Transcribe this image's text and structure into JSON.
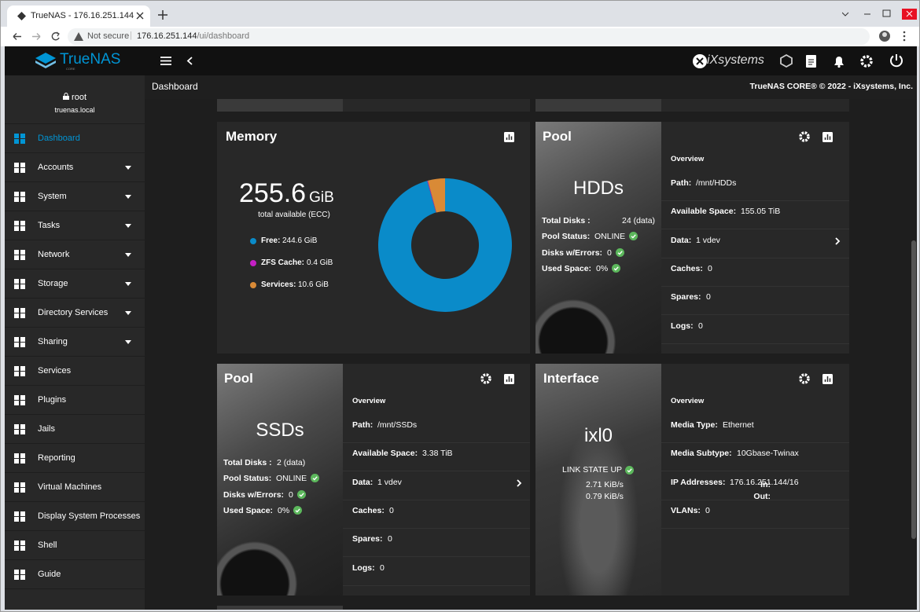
{
  "browser": {
    "tab_title": "TrueNAS - 176.16.251.144",
    "security": "Not secure",
    "url_host": "176.16.251.144",
    "url_path": "/ui/dashboard"
  },
  "topbar": {
    "brand": "TrueNAS",
    "brand_sub": "CORE",
    "vendor": "iXsystems"
  },
  "header": {
    "title": "Dashboard",
    "copyright": "TrueNAS CORE® © 2022 - iXsystems, Inc."
  },
  "user": {
    "name": "root",
    "host": "truenas.local"
  },
  "nav": [
    {
      "label": "Dashboard",
      "active": true,
      "expandable": false
    },
    {
      "label": "Accounts",
      "active": false,
      "expandable": true
    },
    {
      "label": "System",
      "active": false,
      "expandable": true
    },
    {
      "label": "Tasks",
      "active": false,
      "expandable": true
    },
    {
      "label": "Network",
      "active": false,
      "expandable": true
    },
    {
      "label": "Storage",
      "active": false,
      "expandable": true
    },
    {
      "label": "Directory Services",
      "active": false,
      "expandable": true
    },
    {
      "label": "Sharing",
      "active": false,
      "expandable": true
    },
    {
      "label": "Services",
      "active": false,
      "expandable": false
    },
    {
      "label": "Plugins",
      "active": false,
      "expandable": false
    },
    {
      "label": "Jails",
      "active": false,
      "expandable": false
    },
    {
      "label": "Reporting",
      "active": false,
      "expandable": false
    },
    {
      "label": "Virtual Machines",
      "active": false,
      "expandable": false
    },
    {
      "label": "Display System Processes",
      "active": false,
      "expandable": false
    },
    {
      "label": "Shell",
      "active": false,
      "expandable": false
    },
    {
      "label": "Guide",
      "active": false,
      "expandable": false
    }
  ],
  "memory": {
    "title": "Memory",
    "total": "255.6",
    "unit": "GiB",
    "caption": "total available (ECC)",
    "segments": [
      {
        "name": "Free:",
        "value": 244.6,
        "value_label": "244.6 GiB",
        "color": "#0a8bc9"
      },
      {
        "name": "ZFS Cache:",
        "value": 0.4,
        "value_label": "0.4 GiB",
        "color": "#c41fc4"
      },
      {
        "name": "Services:",
        "value": 10.6,
        "value_label": "10.6 GiB",
        "color": "#d98a36"
      }
    ]
  },
  "pools": [
    {
      "title": "Pool",
      "name": "HDDs",
      "stats": [
        {
          "label": "Total Disks :",
          "value": "24 (data)",
          "ok": false
        },
        {
          "label": "Pool Status:",
          "value": "ONLINE",
          "ok": true
        },
        {
          "label": "Disks w/Errors:",
          "value": "0",
          "ok": true
        },
        {
          "label": "Used Space:",
          "value": "0%",
          "ok": true
        }
      ],
      "overview": "Overview",
      "rows": [
        {
          "label": "Path:",
          "value": "/mnt/HDDs",
          "more": false
        },
        {
          "label": "Available Space:",
          "value": "155.05 TiB",
          "more": false
        },
        {
          "label": "Data:",
          "value": "1 vdev",
          "more": true
        },
        {
          "label": "Caches:",
          "value": "0",
          "more": false
        },
        {
          "label": "Spares:",
          "value": "0",
          "more": false
        },
        {
          "label": "Logs:",
          "value": "0",
          "more": false
        }
      ]
    },
    {
      "title": "Pool",
      "name": "SSDs",
      "stats": [
        {
          "label": "Total Disks :",
          "value": "2 (data)",
          "ok": false
        },
        {
          "label": "Pool Status:",
          "value": "ONLINE",
          "ok": true
        },
        {
          "label": "Disks w/Errors:",
          "value": "0",
          "ok": true
        },
        {
          "label": "Used Space:",
          "value": "0%",
          "ok": true
        }
      ],
      "overview": "Overview",
      "rows": [
        {
          "label": "Path:",
          "value": "/mnt/SSDs",
          "more": false
        },
        {
          "label": "Available Space:",
          "value": "3.38 TiB",
          "more": false
        },
        {
          "label": "Data:",
          "value": "1 vdev",
          "more": true
        },
        {
          "label": "Caches:",
          "value": "0",
          "more": false
        },
        {
          "label": "Spares:",
          "value": "0",
          "more": false
        },
        {
          "label": "Logs:",
          "value": "0",
          "more": false
        }
      ]
    }
  ],
  "interface": {
    "title": "Interface",
    "name": "ixl0",
    "link": "LINK STATE UP",
    "traffic": [
      {
        "label": "In:",
        "value": "2.71 KiB/s"
      },
      {
        "label": "Out:",
        "value": "0.79 KiB/s"
      }
    ],
    "overview": "Overview",
    "rows": [
      {
        "label": "Media Type:",
        "value": "Ethernet"
      },
      {
        "label": "Media Subtype:",
        "value": "10Gbase-Twinax"
      },
      {
        "label": "IP Addresses:",
        "value": "176.16.251.144/16"
      },
      {
        "label": "VLANs:",
        "value": "0"
      }
    ]
  }
}
